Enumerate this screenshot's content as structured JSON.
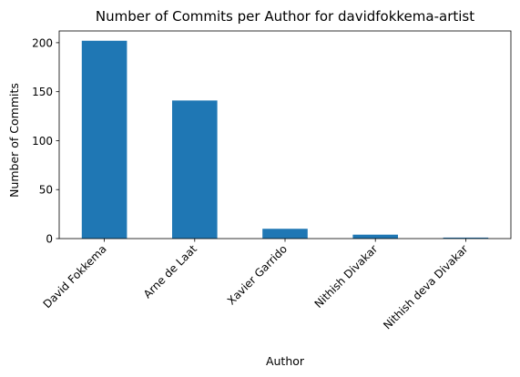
{
  "chart_data": {
    "type": "bar",
    "title": "Number of Commits per Author for davidfokkema-artist",
    "xlabel": "Author",
    "ylabel": "Number of Commits",
    "categories": [
      "David Fokkema",
      "Arne de Laat",
      "Xavier Garrido",
      "Nithish Divakar",
      "Nithish deva Divakar"
    ],
    "values": [
      202,
      141,
      10,
      4,
      1
    ],
    "ylim": [
      0,
      212
    ],
    "yticks": [
      0,
      50,
      100,
      150,
      200
    ],
    "grid": false,
    "legend": "none",
    "bar_color": "#1f77b4"
  }
}
